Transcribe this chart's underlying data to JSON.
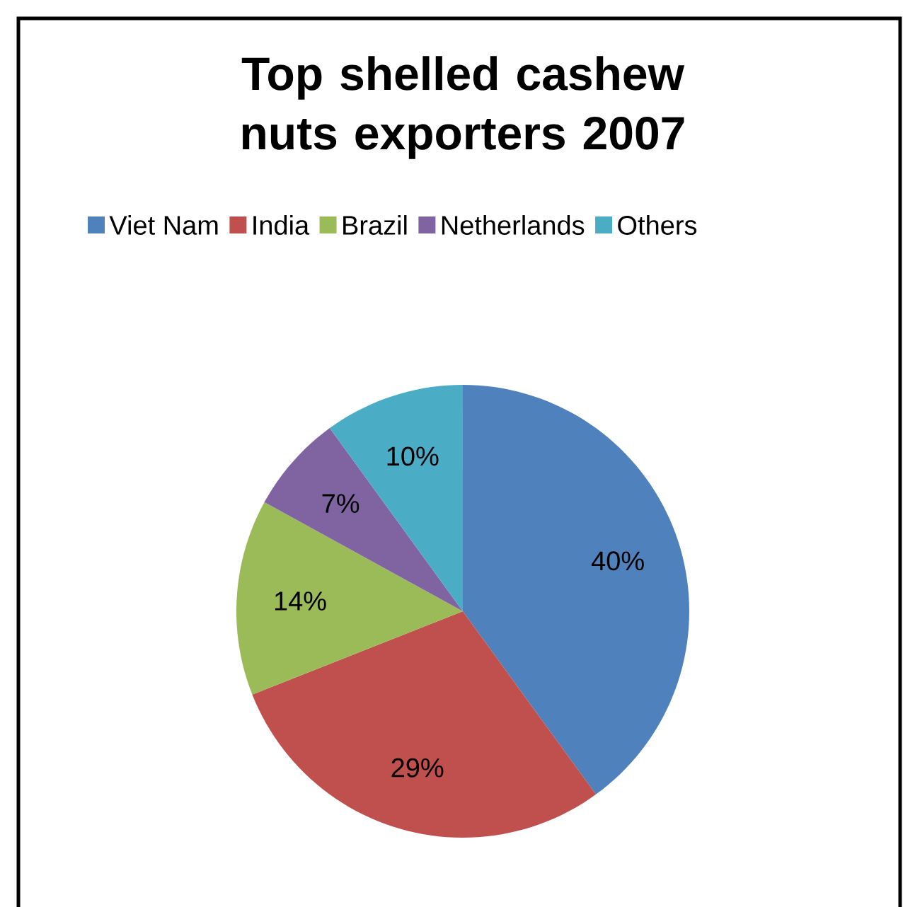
{
  "chart_data": {
    "type": "pie",
    "title": "Top shelled cashew nuts exporters 2007",
    "categories": [
      "Viet Nam",
      "India",
      "Brazil",
      "Netherlands",
      "Others"
    ],
    "values": [
      40,
      29,
      14,
      7,
      10
    ],
    "value_labels": [
      "40%",
      "29%",
      "14%",
      "7%",
      "10%"
    ],
    "colors": [
      "#4f81bd",
      "#c0504d",
      "#9bbb59",
      "#8064a2",
      "#4bacc6"
    ],
    "legend": "top"
  }
}
